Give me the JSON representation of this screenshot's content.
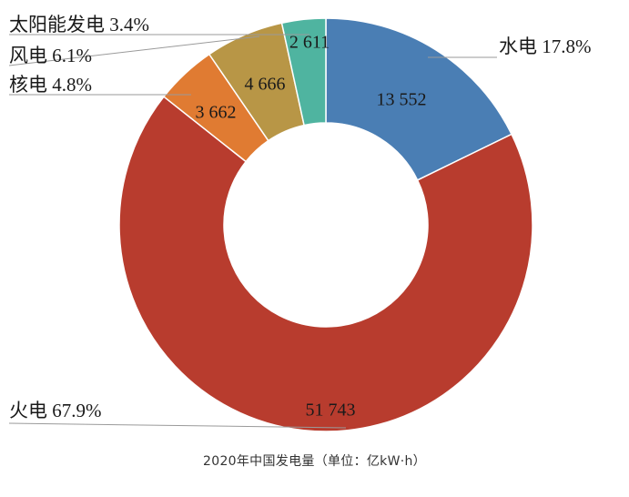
{
  "chart_data": {
    "type": "pie",
    "donut": true,
    "title": "2020年中国发电量（单位：亿kW·h）",
    "slices": [
      {
        "name": "水电",
        "value": 13552,
        "value_label": "13 552",
        "percent_label": "17.8%",
        "color": "#4a7eb4"
      },
      {
        "name": "火电",
        "value": 51743,
        "value_label": "51 743",
        "percent_label": "67.9%",
        "color": "#b83c2e"
      },
      {
        "name": "核电",
        "value": 3662,
        "value_label": "3 662",
        "percent_label": "4.8%",
        "color": "#e07b32"
      },
      {
        "name": "风电",
        "value": 4666,
        "value_label": "4 666",
        "percent_label": "6.1%",
        "color": "#b89646"
      },
      {
        "name": "太阳能发电",
        "value": 2611,
        "value_label": "2 611",
        "percent_label": "3.4%",
        "color": "#4fb4a0"
      }
    ]
  }
}
